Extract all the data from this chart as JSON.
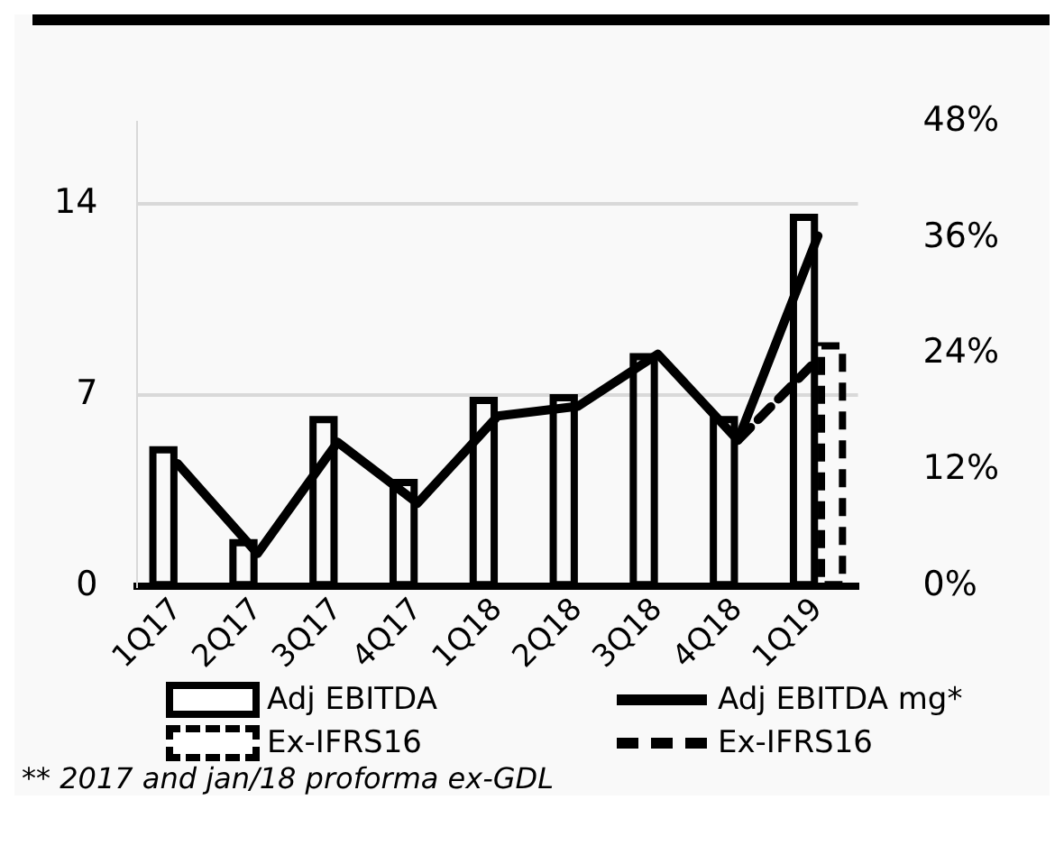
{
  "chart_data": {
    "type": "bar",
    "categories": [
      "1Q17",
      "2Q17",
      "3Q17",
      "4Q17",
      "1Q18",
      "2Q18",
      "3Q18",
      "4Q18",
      "1Q19"
    ],
    "series": [
      {
        "name": "Adj EBITDA",
        "color": "#000000",
        "values": [
          5.0,
          1.6,
          6.1,
          3.8,
          6.8,
          6.9,
          8.4,
          6.1,
          13.5
        ]
      },
      {
        "name": "Adj EBITDA mg*",
        "type": "line",
        "axis": "y2",
        "color": "#000000",
        "values": [
          12.7,
          3.4,
          14.9,
          8.6,
          17.6,
          18.6,
          24.0,
          15.1,
          36.2
        ]
      },
      {
        "name": "Ex-IFRS16",
        "color": "#000000",
        "line_style": "dashed",
        "values": [
          null,
          null,
          null,
          null,
          null,
          null,
          null,
          null,
          8.8
        ]
      },
      {
        "name": "Ex-IFRS16",
        "type": "line",
        "axis": "y2",
        "color": "#000000",
        "line_style": "dashed",
        "values": [
          null,
          null,
          null,
          null,
          null,
          null,
          null,
          15.1,
          23.5
        ]
      }
    ],
    "ylim": [
      0,
      17
    ],
    "yticks": [
      0,
      7,
      14
    ],
    "y2lim": [
      0,
      48
    ],
    "y2ticks": [
      {
        "value": 0,
        "label": "0%"
      },
      {
        "value": 12,
        "label": "12%"
      },
      {
        "value": 24,
        "label": "24%"
      },
      {
        "value": 36,
        "label": "36%"
      },
      {
        "value": 48,
        "label": "48%"
      }
    ],
    "grid": "y",
    "legend": "bottom",
    "marker": "none",
    "annotations": [
      "** 2017 and jan/18 proforma ex-GDL"
    ]
  }
}
